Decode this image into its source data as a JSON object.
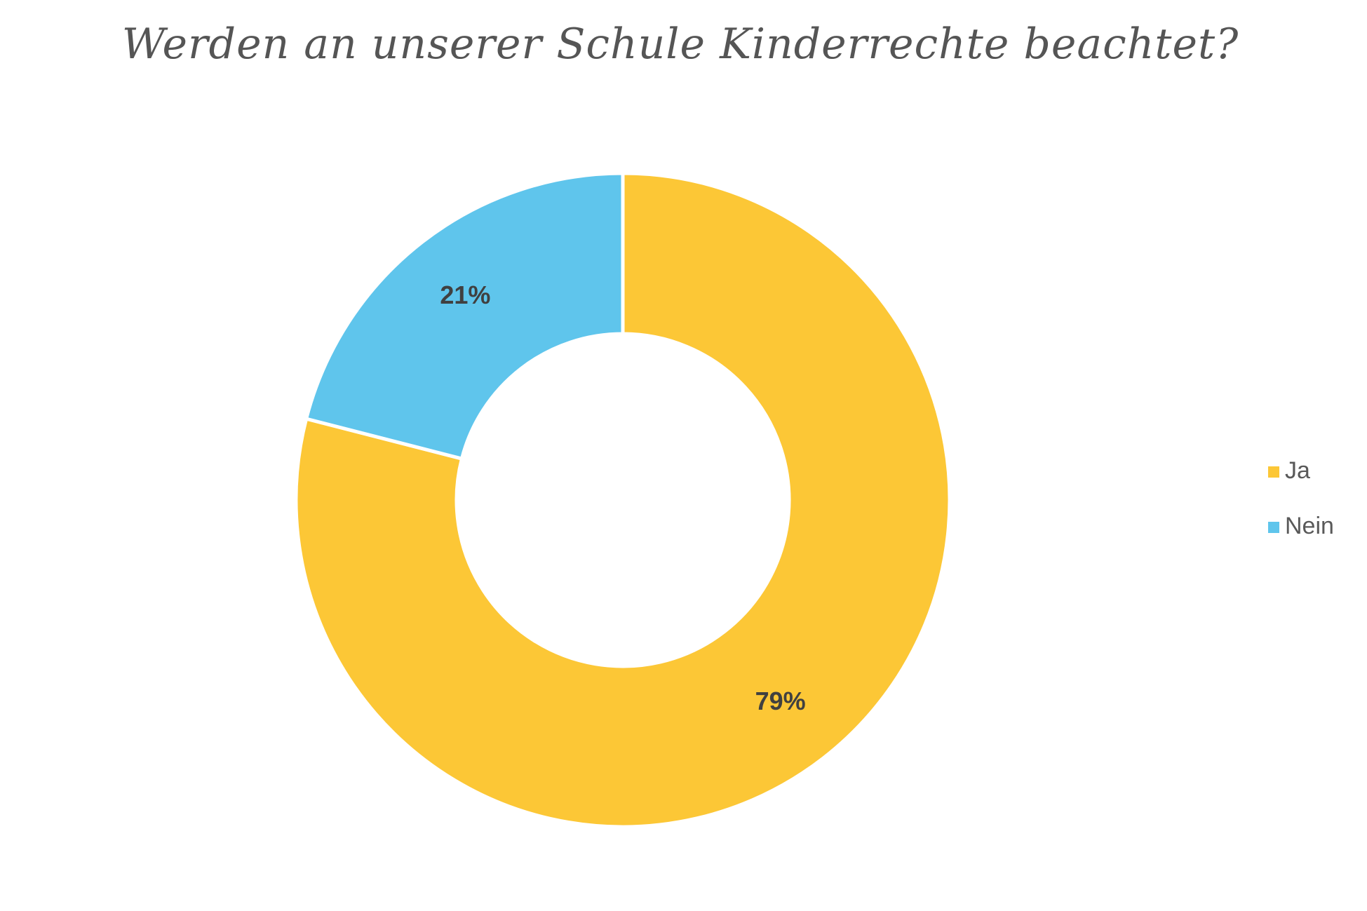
{
  "chart_data": {
    "type": "pie",
    "variant": "donut",
    "title": "Werden an unserer Schule Kinderrechte beachtet?",
    "categories": [
      "Ja",
      "Nein"
    ],
    "values": [
      79,
      21
    ],
    "value_labels": [
      "79%",
      "21%"
    ],
    "colors": [
      "#FCC736",
      "#5FC5EC"
    ],
    "legend": {
      "position": "right",
      "entries": [
        "Ja",
        "Nein"
      ]
    }
  }
}
